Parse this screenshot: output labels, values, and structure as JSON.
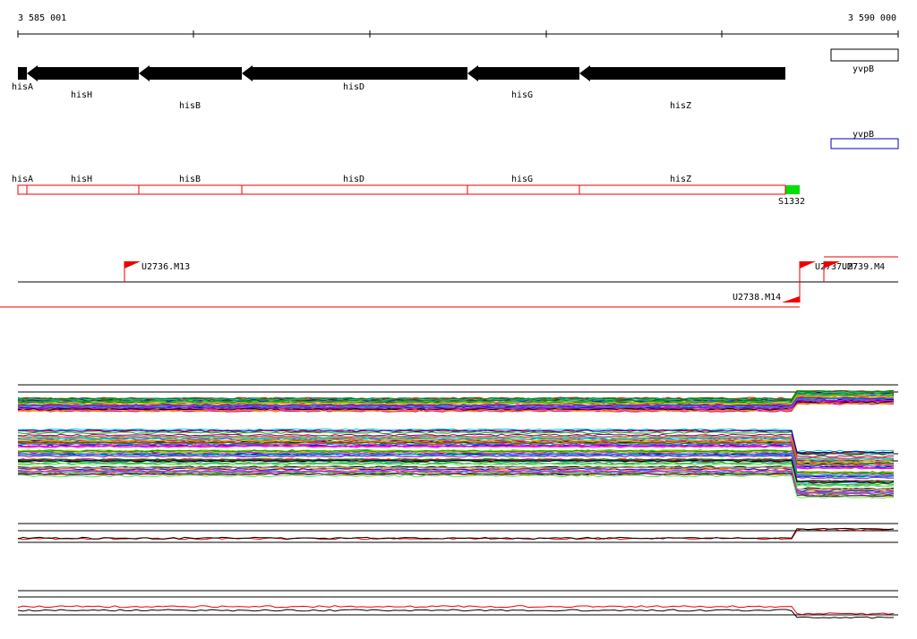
{
  "ruler": {
    "start": "3 585 001",
    "end": "3 590 000"
  },
  "gene_track": {
    "genes": [
      "hisA",
      "hisH",
      "hisB",
      "hisD",
      "hisG",
      "hisZ"
    ],
    "other_strand": "yvpB"
  },
  "segment_track": {
    "genes": [
      "hisA",
      "hisH",
      "hisB",
      "hisD",
      "hisG",
      "hisZ"
    ],
    "other_strand": "yvpB",
    "segment": "S1332"
  },
  "promoters": [
    "U2736.M13",
    "U2737.M7",
    "U2739.M4",
    "U2738.M14"
  ]
}
